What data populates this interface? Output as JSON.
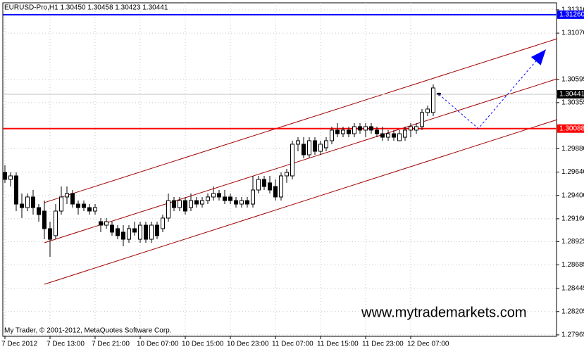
{
  "chart_data": {
    "type": "candlestick",
    "title": "EURUSD-Pro,H1  1.30450 1.30458 1.30423 1.30441",
    "watermark": "www.mytrademarkets.com",
    "footer": "My Trader, © 2001-2012, MetaQuotes Software Corp.",
    "categories": [
      "7 Dec 2012",
      null,
      null,
      null,
      null,
      null,
      null,
      null,
      "7 Dec 13:00",
      null,
      null,
      null,
      null,
      null,
      null,
      null,
      "7 Dec 21:00",
      null,
      null,
      null,
      null,
      null,
      null,
      null,
      "10 Dec 07:00",
      null,
      null,
      null,
      null,
      null,
      null,
      null,
      "10 Dec 15:00",
      null,
      null,
      null,
      null,
      null,
      null,
      null,
      "10 Dec 23:00",
      null,
      null,
      null,
      null,
      null,
      null,
      null,
      "11 Dec 07:00",
      null,
      null,
      null,
      null,
      null,
      null,
      null,
      "11 Dec 15:00",
      null,
      null,
      null,
      null,
      null,
      null,
      null,
      "11 Dec 23:00",
      null,
      null,
      null,
      null,
      null,
      null,
      null,
      "12 Dec 07:00",
      null,
      null,
      null,
      null,
      null
    ],
    "ohlc": [
      [
        1.29637,
        1.2971,
        1.29529,
        1.29565
      ],
      [
        1.29565,
        1.29637,
        1.29492,
        1.29601
      ],
      [
        1.29601,
        1.29637,
        1.29239,
        1.29311
      ],
      [
        1.29311,
        1.2942,
        1.29167,
        1.29275
      ],
      [
        1.29275,
        1.2942,
        1.29239,
        1.29384
      ],
      [
        1.29384,
        1.29456,
        1.29203,
        1.29275
      ],
      [
        1.29275,
        1.29311,
        1.2913,
        1.29203
      ],
      [
        1.29239,
        1.29347,
        1.28949,
        1.29058
      ],
      [
        1.29058,
        1.2913,
        1.28768,
        1.28949
      ],
      [
        1.28986,
        1.29311,
        1.28949,
        1.29239
      ],
      [
        1.29239,
        1.29492,
        1.29203,
        1.29384
      ],
      [
        1.29384,
        1.29492,
        1.29311,
        1.2942
      ],
      [
        1.2942,
        1.29456,
        1.29275,
        1.29311
      ],
      [
        1.29311,
        1.29347,
        1.29203,
        1.29275
      ],
      [
        1.29311,
        1.29347,
        1.29239,
        1.29275
      ],
      [
        1.29275,
        1.29311,
        1.29203,
        1.29239
      ],
      [
        1.29239,
        1.29311,
        1.29203,
        1.29275
      ],
      [
        1.2913,
        1.29167,
        1.29022,
        1.29094
      ],
      [
        1.29094,
        1.29167,
        1.29058,
        1.2913
      ],
      [
        1.29094,
        1.2913,
        1.28986,
        1.29022
      ],
      [
        1.29058,
        1.29094,
        1.28949,
        1.28986
      ],
      [
        1.29022,
        1.29094,
        1.28877,
        1.28949
      ],
      [
        1.28949,
        1.29094,
        1.28913,
        1.29058
      ],
      [
        1.29058,
        1.2913,
        1.28986,
        1.29022
      ],
      [
        1.28949,
        1.2913,
        1.28913,
        1.29094
      ],
      [
        1.29094,
        1.2913,
        1.28913,
        1.28949
      ],
      [
        1.28949,
        1.2913,
        1.28913,
        1.29094
      ],
      [
        1.29094,
        1.2913,
        1.28949,
        1.28986
      ],
      [
        1.29058,
        1.29203,
        1.29022,
        1.29167
      ],
      [
        1.29167,
        1.2942,
        1.2913,
        1.29347
      ],
      [
        1.29347,
        1.29384,
        1.29239,
        1.29275
      ],
      [
        1.29275,
        1.29384,
        1.29239,
        1.29347
      ],
      [
        1.29347,
        1.29384,
        1.29203,
        1.29239
      ],
      [
        1.29275,
        1.2942,
        1.29239,
        1.29347
      ],
      [
        1.29347,
        1.29384,
        1.29275,
        1.29311
      ],
      [
        1.29311,
        1.29384,
        1.29275,
        1.29347
      ],
      [
        1.29347,
        1.2942,
        1.29311,
        1.29384
      ],
      [
        1.29384,
        1.29492,
        1.29347,
        1.2942
      ],
      [
        1.2942,
        1.29456,
        1.29347,
        1.29384
      ],
      [
        1.29384,
        1.29456,
        1.29311,
        1.29347
      ],
      [
        1.29384,
        1.2942,
        1.29311,
        1.29347
      ],
      [
        1.29347,
        1.29384,
        1.29275,
        1.29311
      ],
      [
        1.29311,
        1.29384,
        1.29275,
        1.29347
      ],
      [
        1.29347,
        1.29384,
        1.29275,
        1.29311
      ],
      [
        1.29311,
        1.29601,
        1.29275,
        1.29456
      ],
      [
        1.29456,
        1.29601,
        1.2942,
        1.29565
      ],
      [
        1.29565,
        1.29601,
        1.29456,
        1.29492
      ],
      [
        1.29529,
        1.29601,
        1.2942,
        1.29456
      ],
      [
        1.29492,
        1.29565,
        1.29347,
        1.29384
      ],
      [
        1.29384,
        1.29637,
        1.29347,
        1.29601
      ],
      [
        1.29601,
        1.29673,
        1.29529,
        1.29637
      ],
      [
        1.29601,
        1.29963,
        1.29565,
        1.29927
      ],
      [
        1.29927,
        1.29999,
        1.29854,
        1.29963
      ],
      [
        1.29927,
        1.29999,
        1.29782,
        1.29818
      ],
      [
        1.29818,
        1.29999,
        1.29782,
        1.29963
      ],
      [
        1.29963,
        1.29999,
        1.29818,
        1.29854
      ],
      [
        1.29854,
        1.29963,
        1.29818,
        1.29927
      ],
      [
        1.29891,
        1.29999,
        1.29854,
        1.29963
      ],
      [
        1.29963,
        1.30108,
        1.29927,
        1.30072
      ],
      [
        1.30072,
        1.30144,
        1.29999,
        1.30035
      ],
      [
        1.30035,
        1.30108,
        1.29999,
        1.30072
      ],
      [
        1.30072,
        1.30108,
        1.29999,
        1.30035
      ],
      [
        1.30035,
        1.30144,
        1.29999,
        1.30108
      ],
      [
        1.30108,
        1.30144,
        1.30035,
        1.30072
      ],
      [
        1.30072,
        1.30144,
        1.29999,
        1.30108
      ],
      [
        1.30108,
        1.30144,
        1.30035,
        1.30072
      ],
      [
        1.30072,
        1.30108,
        1.29999,
        1.30035
      ],
      [
        1.30035,
        1.30108,
        1.29963,
        1.29999
      ],
      [
        1.29999,
        1.30072,
        1.29963,
        1.30035
      ],
      [
        1.30035,
        1.30072,
        1.29963,
        1.29999
      ],
      [
        1.29963,
        1.30072,
        1.29963,
        1.30035
      ],
      [
        1.29999,
        1.30108,
        1.29963,
        1.30072
      ],
      [
        1.30072,
        1.30144,
        1.29999,
        1.30108
      ],
      [
        1.30072,
        1.30144,
        1.30035,
        1.30108
      ],
      [
        1.30108,
        1.30289,
        1.30072,
        1.30253
      ],
      [
        1.30253,
        1.30325,
        1.30216,
        1.30289
      ],
      [
        1.30253,
        1.30542,
        1.30216,
        1.30506
      ],
      [
        1.3045,
        1.30458,
        1.30423,
        1.30441
      ]
    ],
    "ylim": [
      1.2795,
      1.31382
    ],
    "yticks": [
      {
        "value": 1.3131,
        "label": "1.31310"
      },
      {
        "value": 1.3107,
        "label": "1.31070"
      },
      1.30595,
      1.30355,
      {
        "value": 1.2988,
        "label": "1.29880"
      },
      {
        "value": 1.2964,
        "label": "1.29640"
      },
      {
        "value": 1.294,
        "label": "1.29400"
      },
      {
        "value": 1.2916,
        "label": "1.29160"
      },
      1.28925,
      1.28685,
      1.28445,
      1.28205,
      1.27965
    ],
    "grid": true,
    "hlines": [
      {
        "value": 1.3126,
        "label": "1.31260",
        "color": "#0000ff"
      },
      {
        "value": 1.30088,
        "label": "1.30088",
        "color": "#ff0000"
      }
    ],
    "bid": {
      "value": 1.30441,
      "label": "1.30441",
      "color": "#c0c0c0"
    },
    "channel": {
      "color": "#a00000",
      "lines": [
        {
          "x": [
            7,
            98
          ],
          "y": [
            1.29326,
            1.31013
          ]
        },
        {
          "x": [
            7,
            98
          ],
          "y": [
            1.28913,
            1.306
          ]
        },
        {
          "x": [
            7,
            98
          ],
          "y": [
            1.28486,
            1.3018
          ]
        }
      ]
    },
    "forecast": {
      "color": "#0000ff",
      "x": [
        77,
        84,
        96
      ],
      "y": [
        1.30441,
        1.30088,
        1.30903
      ]
    }
  }
}
